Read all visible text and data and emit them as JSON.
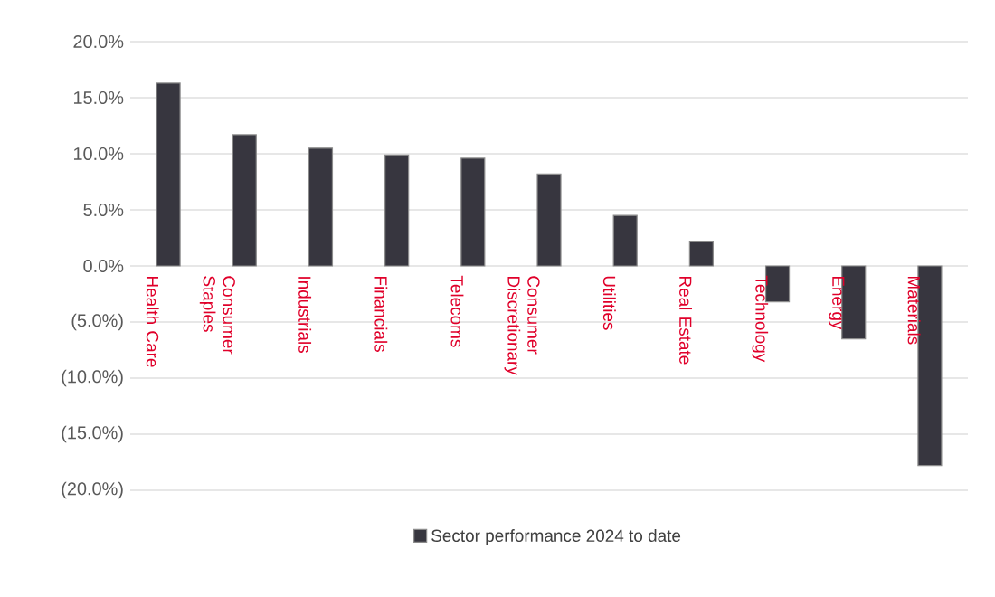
{
  "chart_data": {
    "type": "bar",
    "categories": [
      "Health Care",
      "Consumer Staples",
      "Industrials",
      "Financials",
      "Telecoms",
      "Consumer Discretionary",
      "Utilities",
      "Real Estate",
      "Technology",
      "Energy",
      "Materials"
    ],
    "series": [
      {
        "name": "Sector performance 2024 to date",
        "color": "#37363f",
        "values": [
          16.3,
          11.7,
          10.5,
          9.9,
          9.6,
          8.2,
          4.5,
          2.2,
          -3.2,
          -6.5,
          -17.8
        ]
      }
    ],
    "ylim": [
      -20,
      20
    ],
    "yticks": [
      {
        "value": -20,
        "label": "(20.0%)"
      },
      {
        "value": -15,
        "label": "(15.0%)"
      },
      {
        "value": -10,
        "label": "(10.0%)"
      },
      {
        "value": -5,
        "label": "(5.0%)"
      },
      {
        "value": 0,
        "label": "0.0%"
      },
      {
        "value": 5,
        "label": "5.0%"
      },
      {
        "value": 10,
        "label": "10.0%"
      },
      {
        "value": 15,
        "label": "15.0%"
      },
      {
        "value": 20,
        "label": "20.0%"
      }
    ],
    "grid": "y",
    "legend": "bottom"
  }
}
